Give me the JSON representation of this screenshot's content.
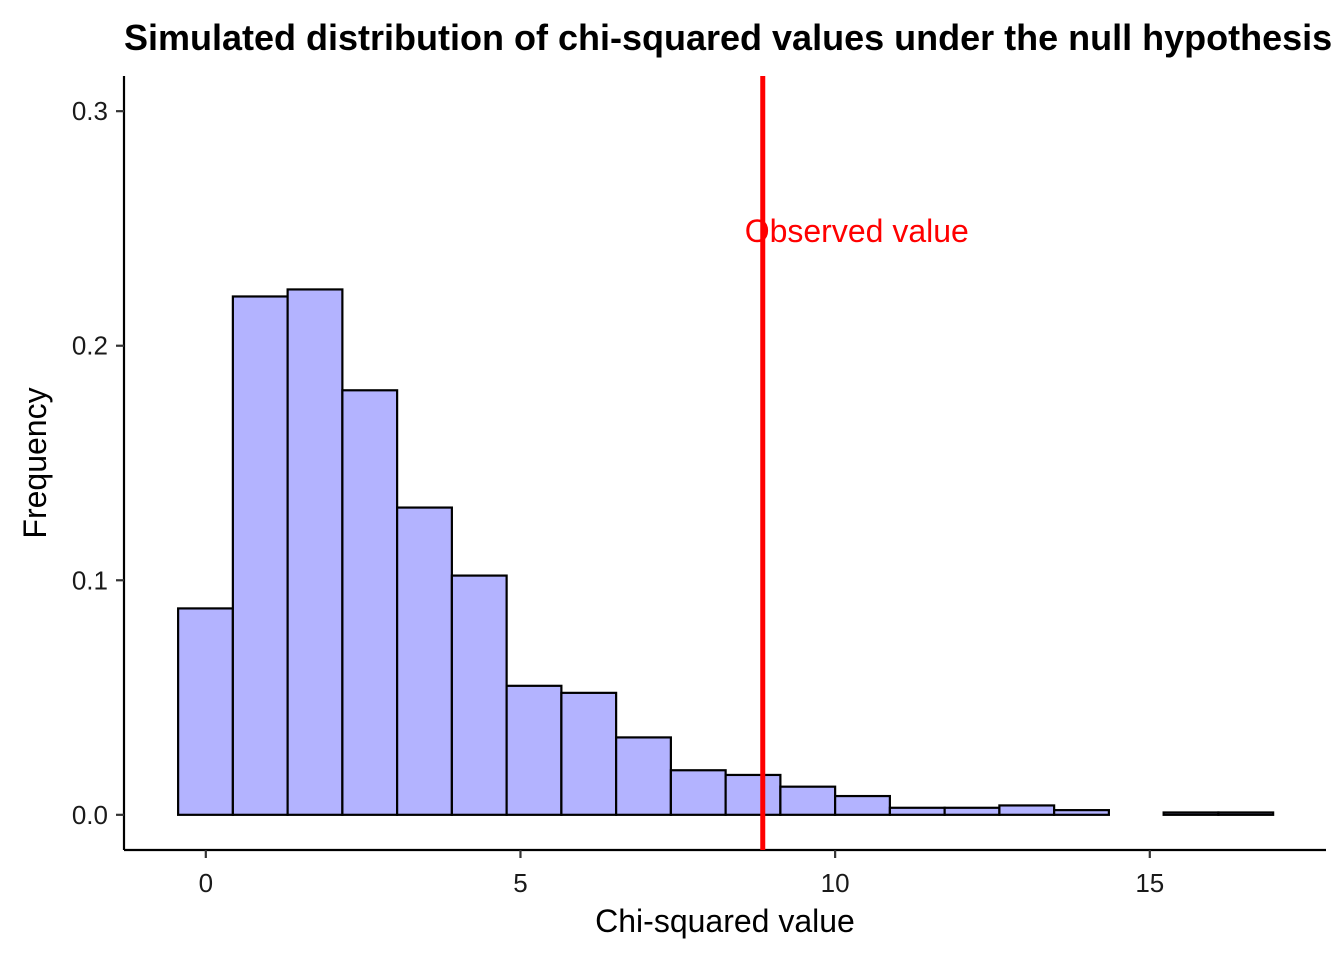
{
  "chart_data": {
    "type": "bar",
    "title": "Simulated distribution of chi-squared values under the null hypothesis",
    "xlabel": "Chi-squared value",
    "ylabel": "Frequency",
    "xlim": [
      -1.3,
      17.8
    ],
    "ylim": [
      -0.015,
      0.315
    ],
    "x_ticks": [
      0,
      5,
      10,
      15
    ],
    "y_ticks": [
      0.0,
      0.1,
      0.2,
      0.3
    ],
    "x_tick_labels": [
      "0",
      "5",
      "10",
      "15"
    ],
    "y_tick_labels": [
      "0.0",
      "0.1",
      "0.2",
      "0.3"
    ],
    "bin_edges": [
      -0.44,
      0.43,
      1.3,
      2.17,
      3.04,
      3.91,
      4.78,
      5.65,
      6.52,
      7.39,
      8.26,
      9.13,
      10.0,
      10.87,
      11.74,
      12.61,
      13.48,
      14.35,
      15.22,
      16.09,
      16.96
    ],
    "values": [
      0.088,
      0.221,
      0.224,
      0.181,
      0.131,
      0.102,
      0.055,
      0.052,
      0.033,
      0.019,
      0.017,
      0.012,
      0.008,
      0.003,
      0.003,
      0.004,
      0.002,
      0.0,
      0.001,
      0.001
    ],
    "bar_fill": "#b3b3ff",
    "bar_stroke": "#000000",
    "observed_value": 8.85,
    "observed_label": "Observed value",
    "observed_label_y": 0.249,
    "observed_color": "#ff0000",
    "grid": false
  }
}
